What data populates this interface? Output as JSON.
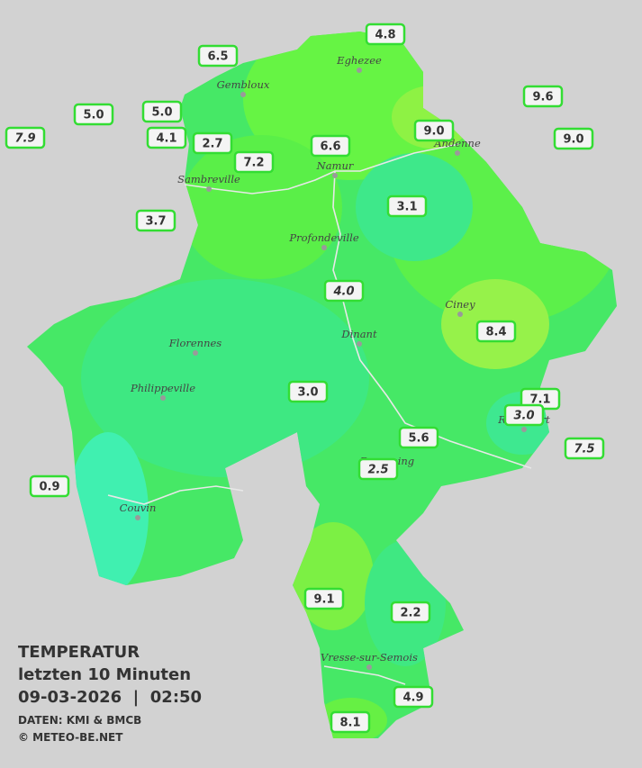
{
  "stations": [
    "4.8",
    "6.5",
    "9.6",
    "5.0",
    "5.0",
    "7.9",
    "4.1",
    "2.7",
    "9.0",
    "9.0",
    "6.6",
    "7.2",
    "3.1",
    "3.7",
    "4.0",
    "8.4",
    "7.1",
    "3.0",
    "3.0",
    "5.6",
    "7.5",
    "2.5",
    "0.9",
    "9.1",
    "2.2",
    "4.9",
    "8.1"
  ],
  "towns": [
    "Eghezee",
    "Gembloux",
    "Andenne",
    "Namur",
    "Sambreville",
    "Profondeville",
    "Ciney",
    "Dinant",
    "Florennes",
    "Philippeville",
    "Rochefort",
    "Beauraing",
    "Couvin",
    "Vresse-sur-Semois"
  ],
  "legend": {
    "title": "TEMPERATUR",
    "period": "letzten 10 Minuten",
    "datetime": "09-03-2026  |  02:50",
    "source": "DATEN: KMI & BMCB",
    "copyright": "© METEO-BE.NET"
  }
}
